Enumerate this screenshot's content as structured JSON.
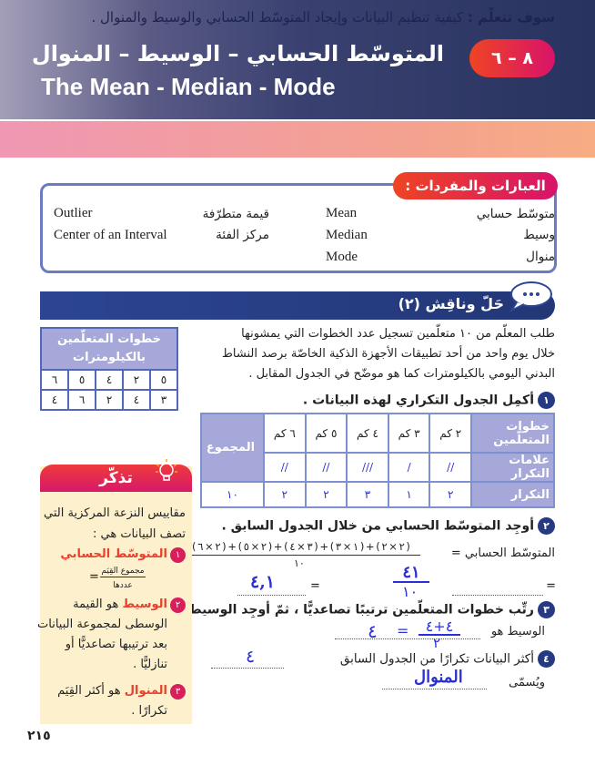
{
  "header": {
    "badge": "٨ – ٦",
    "title_ar": "المتوسّط الحسابي – الوسيط – المنوال",
    "title_en": "The Mean - Median - Mode"
  },
  "learn": {
    "label": "سوف تتعلّم :",
    "text": "كيفية تنظيم البيانات وإيجاد المتوسّط الحسابي والوسيط والمنوال ."
  },
  "vocab": {
    "label": "العبارات والمفردات :",
    "items": [
      {
        "ar": "متوسّط حسابي",
        "en": "Mean"
      },
      {
        "ar": "وسيط",
        "en": "Median"
      },
      {
        "ar": "منوال",
        "en": "Mode"
      },
      {
        "ar": "قيمة متطرّفة",
        "en": "Outlier"
      },
      {
        "ar": "مركز الفئة",
        "en": "Center of an Interval"
      }
    ]
  },
  "discuss": {
    "title": "حَلّ وناقِش (٢)",
    "icon": "chat-bubble-icon",
    "paragraph": [
      "طلب المعلّم من ١٠ متعلّمين تسجيل عدد الخطوات التي يمشونها",
      "خلال يوم واحد من أحد تطبيقات الأجهزة الذكية الخاصّة برصد النشاط",
      "البدني اليومي بالكيلومترات كما هو موضّح في الجدول المقابل ."
    ]
  },
  "data_table": {
    "header": "خطوات المتعلّمين بالكيلومترات",
    "rows": [
      [
        "٥",
        "٢",
        "٤",
        "٥",
        "٦"
      ],
      [
        "٣",
        "٤",
        "٢",
        "٦",
        "٤"
      ]
    ]
  },
  "q1": {
    "num": "١",
    "text": "أكمِل الجدول التكراري لهذه البيانات .",
    "row_labels": [
      "خطوات المتعلّمين",
      "علامات التكرار",
      "التكرار"
    ],
    "columns": [
      "٢ كم",
      "٣ كم",
      "٤ كم",
      "٥ كم",
      "٦ كم"
    ],
    "total_label": "المجموع",
    "tallies": [
      "//",
      "/",
      "///",
      "//",
      "//"
    ],
    "frequencies": [
      "٢",
      "١",
      "٣",
      "٢",
      "٢"
    ],
    "total": "١٠"
  },
  "q2": {
    "num": "٢",
    "text": "أوجِد المتوسّط الحسابي من خلال الجدول السابق .",
    "label": "المتوسّط الحسابي =",
    "numerator": "( ٢ × ٢ ) + ( ١ × ٣ ) + ( ٣ × ٤ ) + ( ٢ × ٥ ) + ( ٢ × ٦ )",
    "denominator": "١٠",
    "hw_fraction_num": "٤١",
    "hw_fraction_den": "١٠",
    "hw_result": "٤,١"
  },
  "q3": {
    "num": "٣",
    "text": "رتِّب خطوات المتعلّمين ترتيبًا تصاعديًّا ، ثمّ أوجِد الوسيط .",
    "label": "الوسيط هو",
    "hw_num": "٤+٤",
    "hw_den": "٢",
    "hw_result": "٤"
  },
  "q4": {
    "num": "٤",
    "text": "أكثر البيانات تكرارًا من الجدول السابق",
    "hw_value": "٤",
    "named_label": "ويُسمّى",
    "hw_named": "المنوال"
  },
  "tip": {
    "title": "تذكّر",
    "icon": "lightbulb-icon",
    "intro": [
      "مقاييس النزعة المركزية التي",
      "تصف البيانات هي :"
    ],
    "items": [
      {
        "num": "١",
        "term": "المتوسّط الحسابي",
        "num_label": "مجموع القِيَم",
        "den_label": "عددها"
      },
      {
        "num": "٢",
        "term": "الوسيط",
        "lines": [
          "هو القيمة",
          "الوسطى لمجموعة البيانات",
          "بعد ترتيبها تصاعديًّا أو",
          "تنازليًّا ."
        ]
      },
      {
        "num": "٣",
        "term": "المنوال",
        "lines": [
          "هو أكثر القِيَم",
          "تكرارًا ."
        ]
      }
    ]
  },
  "page_number": "٢١٥",
  "colors": {
    "header_dark": "#28335f",
    "accent_red": "#ee4423",
    "accent_magenta": "#d8136a",
    "table_header": "#a6a8d9",
    "handwriting": "#2b2fd6",
    "tip_bg": "#fdf0cc"
  }
}
